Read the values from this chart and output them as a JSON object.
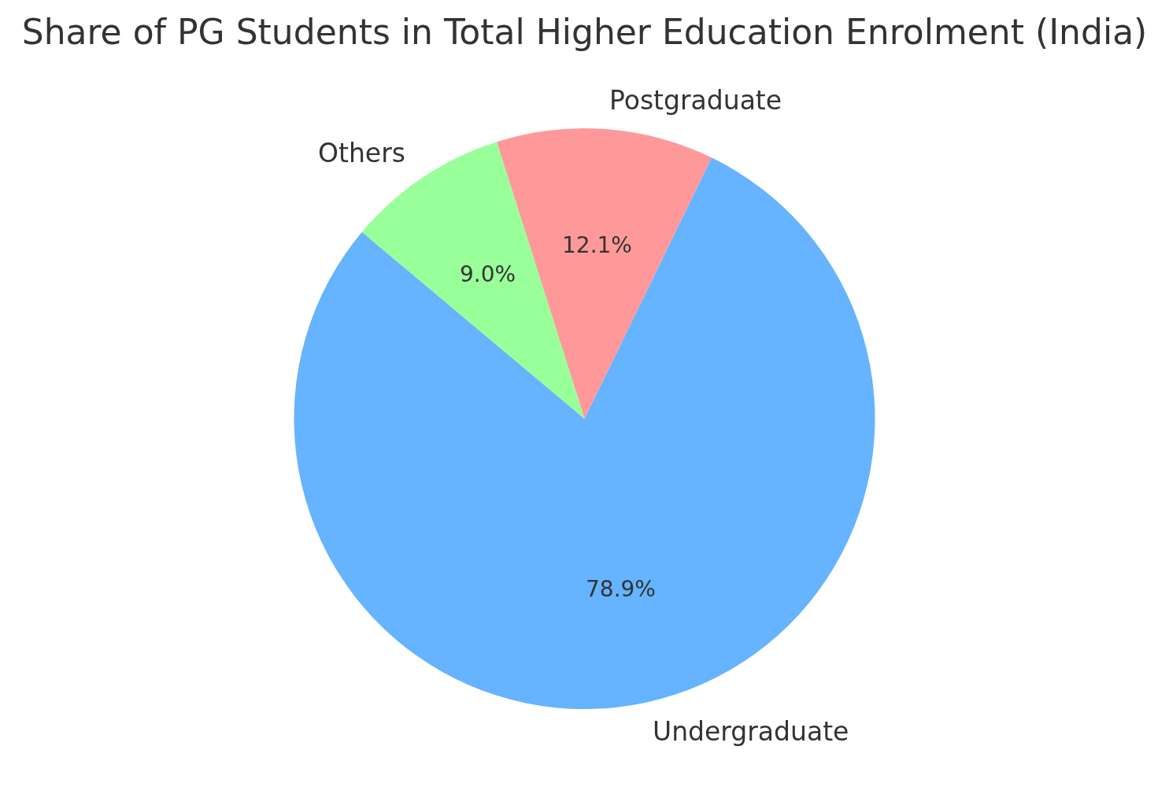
{
  "chart_data": {
    "type": "pie",
    "title": "Share of PG Students in Total Higher Education Enrolment (India)",
    "categories": [
      "Undergraduate",
      "Postgraduate",
      "Others"
    ],
    "values": [
      78.9,
      12.1,
      9.0
    ],
    "colors": [
      "#66b3ff",
      "#ff9999",
      "#99ff99"
    ],
    "value_labels": [
      "78.9%",
      "12.1%",
      "9.0%"
    ]
  }
}
